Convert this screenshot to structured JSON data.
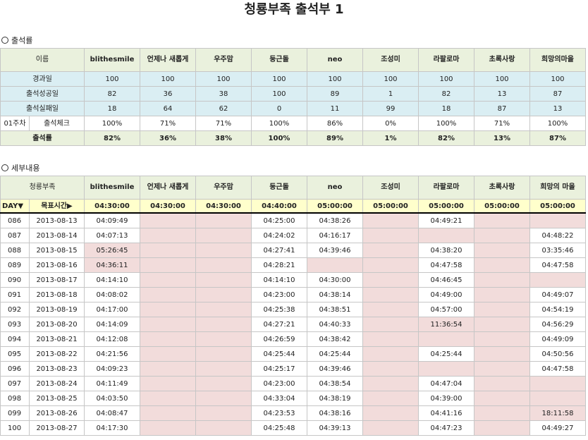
{
  "title": "청룡부족 출석부 1",
  "section1_label": "출석률",
  "section2_label": "세부내용",
  "members": [
    "blithesmile",
    "언제나 새롭게",
    "우주맘",
    "둥근돌",
    "neo",
    "조성미",
    "라팔로마",
    "초록사랑",
    "희망의마을"
  ],
  "members2": [
    "blithesmile",
    "언제나 새롭게",
    "우주맘",
    "둥근돌",
    "neo",
    "조성미",
    "라팔로마",
    "초록사랑",
    "희망의 마을"
  ],
  "summary": {
    "name_header": "이름",
    "elapsed_label": "경과일",
    "elapsed": [
      "100",
      "100",
      "100",
      "100",
      "100",
      "100",
      "100",
      "100",
      "100"
    ],
    "success_label": "출석성공일",
    "success": [
      "82",
      "36",
      "38",
      "100",
      "89",
      "1",
      "82",
      "13",
      "87"
    ],
    "fail_label": "출석실패일",
    "fail": [
      "18",
      "64",
      "62",
      "0",
      "11",
      "99",
      "18",
      "87",
      "13"
    ],
    "week_label": "01주차",
    "check_label": "출석체크",
    "check": [
      "100%",
      "71%",
      "71%",
      "100%",
      "86%",
      "0%",
      "100%",
      "71%",
      "100%"
    ],
    "rate_label": "출석률",
    "rate": [
      "82%",
      "36%",
      "38%",
      "100%",
      "89%",
      "1%",
      "82%",
      "13%",
      "87%"
    ]
  },
  "detail": {
    "tribe_header": "청룡부족",
    "day_header": "DAY▼",
    "goal_header": "목표시간▶",
    "goals": [
      "04:30:00",
      "04:30:00",
      "04:30:00",
      "04:40:00",
      "05:00:00",
      "05:00:00",
      "05:00:00",
      "05:00:00",
      "05:00:00"
    ],
    "rows": [
      {
        "day": "086",
        "date": "2013-08-13",
        "t": [
          "04:09:49",
          "",
          "",
          "04:25:00",
          "04:38:26",
          "",
          "04:49:21",
          "",
          ""
        ]
      },
      {
        "day": "087",
        "date": "2013-08-14",
        "t": [
          "04:07:13",
          "",
          "",
          "04:24:02",
          "04:16:17",
          "",
          "",
          "",
          "04:48:22"
        ]
      },
      {
        "day": "088",
        "date": "2013-08-15",
        "t": [
          "05:26:45",
          "",
          "",
          "04:27:41",
          "04:39:46",
          "",
          "04:38:20",
          "",
          "03:35:46"
        ]
      },
      {
        "day": "089",
        "date": "2013-08-16",
        "t": [
          "04:36:11",
          "",
          "",
          "04:28:21",
          "",
          "",
          "04:47:58",
          "",
          "04:47:58"
        ]
      },
      {
        "day": "090",
        "date": "2013-08-17",
        "t": [
          "04:14:10",
          "",
          "",
          "04:14:10",
          "04:30:00",
          "",
          "04:46:45",
          "",
          ""
        ]
      },
      {
        "day": "091",
        "date": "2013-08-18",
        "t": [
          "04:08:02",
          "",
          "",
          "04:23:00",
          "04:38:14",
          "",
          "04:49:00",
          "",
          "04:49:07"
        ]
      },
      {
        "day": "092",
        "date": "2013-08-19",
        "t": [
          "04:17:00",
          "",
          "",
          "04:25:38",
          "04:38:51",
          "",
          "04:57:00",
          "",
          "04:54:19"
        ]
      },
      {
        "day": "093",
        "date": "2013-08-20",
        "t": [
          "04:14:09",
          "",
          "",
          "04:27:21",
          "04:40:33",
          "",
          "11:36:54",
          "",
          "04:56:29"
        ]
      },
      {
        "day": "094",
        "date": "2013-08-21",
        "t": [
          "04:12:08",
          "",
          "",
          "04:26:59",
          "04:38:42",
          "",
          "",
          "",
          "04:49:09"
        ]
      },
      {
        "day": "095",
        "date": "2013-08-22",
        "t": [
          "04:21:56",
          "",
          "",
          "04:25:44",
          "04:25:44",
          "",
          "04:25:44",
          "",
          "04:50:56"
        ]
      },
      {
        "day": "096",
        "date": "2013-08-23",
        "t": [
          "04:09:23",
          "",
          "",
          "04:25:17",
          "04:39:46",
          "",
          "",
          "",
          "04:47:58"
        ]
      },
      {
        "day": "097",
        "date": "2013-08-24",
        "t": [
          "04:11:49",
          "",
          "",
          "04:23:00",
          "04:38:54",
          "",
          "04:47:04",
          "",
          ""
        ]
      },
      {
        "day": "098",
        "date": "2013-08-25",
        "t": [
          "04:03:50",
          "",
          "",
          "04:33:04",
          "04:38:19",
          "",
          "04:39:00",
          "",
          ""
        ]
      },
      {
        "day": "099",
        "date": "2013-08-26",
        "t": [
          "04:08:47",
          "",
          "",
          "04:23:53",
          "04:38:16",
          "",
          "04:41:16",
          "",
          "18:11:58"
        ]
      },
      {
        "day": "100",
        "date": "2013-08-27",
        "t": [
          "04:17:30",
          "",
          "",
          "04:25:48",
          "04:39:13",
          "",
          "04:47:23",
          "",
          "04:49:27"
        ]
      }
    ]
  }
}
